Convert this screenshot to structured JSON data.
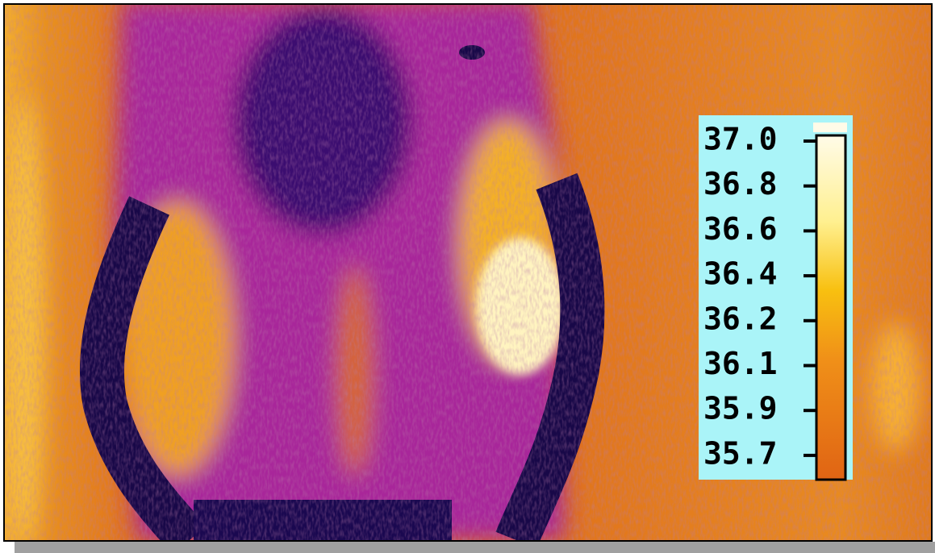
{
  "colorbar": {
    "labels": [
      "37.0",
      "36.8",
      "36.6",
      "36.4",
      "36.2",
      "36.1",
      "35.9",
      "35.7"
    ]
  }
}
